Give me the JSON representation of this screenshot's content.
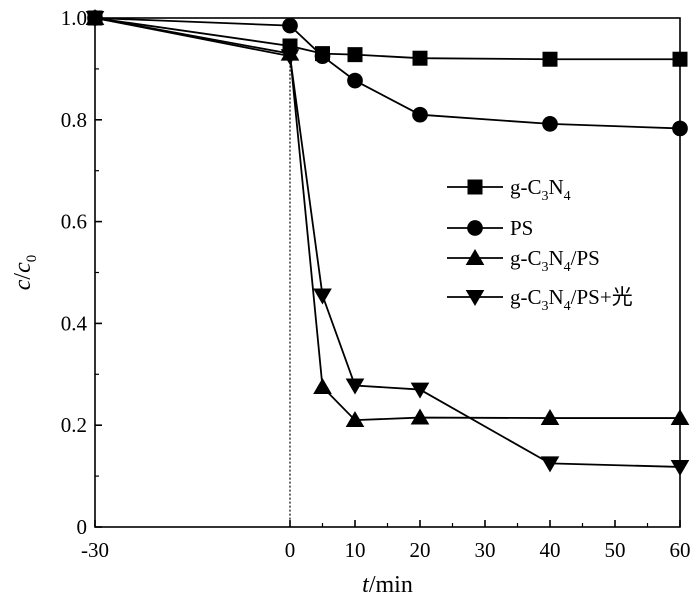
{
  "chart_data": {
    "type": "line",
    "xlabel": {
      "italic": "t",
      "rest": "/min"
    },
    "ylabel": {
      "italic_main": "c",
      "slash": "/",
      "italic_sub_base": "c",
      "sub": "0"
    },
    "x_ticks": [
      "-30",
      "0",
      "10",
      "20",
      "30",
      "40",
      "50",
      "60"
    ],
    "x_tick_values": [
      -30,
      0,
      10,
      20,
      30,
      40,
      50,
      60
    ],
    "y_ticks": [
      "0",
      "0.2",
      "0.4",
      "0.6",
      "0.8",
      "1.0"
    ],
    "y_tick_values": [
      0,
      0.2,
      0.4,
      0.6,
      0.8,
      1.0
    ],
    "xlim": [
      -30,
      60
    ],
    "ylim": [
      0,
      1.0
    ],
    "reference_line_x": 0,
    "legend_position": "right",
    "series": [
      {
        "name": "g-C3N4",
        "marker": "square",
        "x": [
          -30,
          0,
          5,
          10,
          20,
          40,
          60
        ],
        "y": [
          1.0,
          0.945,
          0.93,
          0.928,
          0.921,
          0.919,
          0.919
        ]
      },
      {
        "name": "PS",
        "marker": "circle",
        "x": [
          -30,
          0,
          5,
          10,
          20,
          40,
          60
        ],
        "y": [
          1.0,
          0.985,
          0.925,
          0.877,
          0.81,
          0.792,
          0.783
        ]
      },
      {
        "name": "g-C3N4/PS",
        "marker": "triangle-up",
        "x": [
          -30,
          0,
          5,
          10,
          20,
          40,
          60
        ],
        "y": [
          1.0,
          0.93,
          0.275,
          0.21,
          0.215,
          0.214,
          0.214
        ]
      },
      {
        "name": "g-C3N4/PS+光",
        "marker": "triangle-down",
        "x": [
          -30,
          0,
          5,
          10,
          20,
          40,
          60
        ],
        "y": [
          1.0,
          0.925,
          0.455,
          0.278,
          0.27,
          0.125,
          0.118
        ]
      }
    ],
    "legend": [
      {
        "series": 0,
        "parts": [
          "g-C",
          "3",
          "N",
          "4",
          ""
        ]
      },
      {
        "series": 1,
        "parts": [
          "PS"
        ]
      },
      {
        "series": 2,
        "parts": [
          "g-C",
          "3",
          "N",
          "4",
          "/PS"
        ]
      },
      {
        "series": 3,
        "parts": [
          "g-C",
          "3",
          "N",
          "4",
          "/PS+光"
        ]
      }
    ]
  }
}
